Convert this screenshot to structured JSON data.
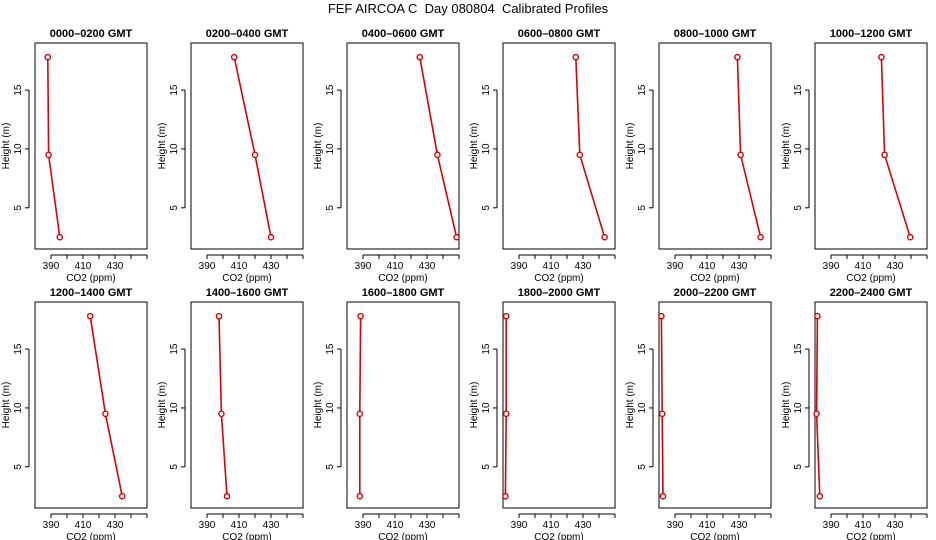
{
  "figure": {
    "title": "FEF AIRCOA C  Day 080804  Calibrated Profiles"
  },
  "colors": {
    "series": "#dd0000",
    "axes": "#000000"
  },
  "chart_data": [
    {
      "type": "line",
      "title": "0000–0200 GMT",
      "xlabel": "CO2 (ppm)",
      "ylabel": "Height (m)",
      "xlim": [
        380,
        450
      ],
      "ylim": [
        1.5,
        19
      ],
      "xticks": [
        390,
        410,
        430
      ],
      "yticks": [
        5,
        10,
        15
      ],
      "series": [
        {
          "x": [
            395.5,
            388.5,
            388.0
          ],
          "y": [
            2.5,
            9.5,
            17.8
          ]
        }
      ]
    },
    {
      "type": "line",
      "title": "0200–0400 GMT",
      "xlabel": "CO2 (ppm)",
      "ylabel": "Height (m)",
      "xlim": [
        380,
        450
      ],
      "ylim": [
        1.5,
        19
      ],
      "xticks": [
        390,
        410,
        430
      ],
      "yticks": [
        5,
        10,
        15
      ],
      "series": [
        {
          "x": [
            430.0,
            420.0,
            407.0
          ],
          "y": [
            2.5,
            9.5,
            17.8
          ]
        }
      ]
    },
    {
      "type": "line",
      "title": "0400–0600 GMT",
      "xlabel": "CO2 (ppm)",
      "ylabel": "Height (m)",
      "xlim": [
        380,
        450
      ],
      "ylim": [
        1.5,
        19
      ],
      "xticks": [
        390,
        410,
        430
      ],
      "yticks": [
        5,
        10,
        15
      ],
      "series": [
        {
          "x": [
            448.5,
            436.5,
            425.5
          ],
          "y": [
            2.5,
            9.5,
            17.8
          ]
        }
      ]
    },
    {
      "type": "line",
      "title": "0600–0800 GMT",
      "xlabel": "CO2 (ppm)",
      "ylabel": "Height (m)",
      "xlim": [
        380,
        450
      ],
      "ylim": [
        1.5,
        19
      ],
      "xticks": [
        390,
        410,
        430
      ],
      "yticks": [
        5,
        10,
        15
      ],
      "series": [
        {
          "x": [
            443.5,
            428.0,
            425.5
          ],
          "y": [
            2.5,
            9.5,
            17.8
          ]
        }
      ]
    },
    {
      "type": "line",
      "title": "0800–1000 GMT",
      "xlabel": "CO2 (ppm)",
      "ylabel": "Height (m)",
      "xlim": [
        380,
        450
      ],
      "ylim": [
        1.5,
        19
      ],
      "xticks": [
        390,
        410,
        430
      ],
      "yticks": [
        5,
        10,
        15
      ],
      "series": [
        {
          "x": [
            443.5,
            431.0,
            429.0
          ],
          "y": [
            2.5,
            9.5,
            17.8
          ]
        }
      ]
    },
    {
      "type": "line",
      "title": "1000–1200 GMT",
      "xlabel": "CO2 (ppm)",
      "ylabel": "Height (m)",
      "xlim": [
        380,
        450
      ],
      "ylim": [
        1.5,
        19
      ],
      "xticks": [
        390,
        410,
        430
      ],
      "yticks": [
        5,
        10,
        15
      ],
      "series": [
        {
          "x": [
            439.5,
            423.5,
            421.5
          ],
          "y": [
            2.5,
            9.5,
            17.8
          ]
        }
      ]
    },
    {
      "type": "line",
      "title": "1200–1400 GMT",
      "xlabel": "CO2 (ppm)",
      "ylabel": "Height (m)",
      "xlim": [
        380,
        450
      ],
      "ylim": [
        1.5,
        19
      ],
      "xticks": [
        390,
        410,
        430
      ],
      "yticks": [
        5,
        10,
        15
      ],
      "series": [
        {
          "x": [
            434.5,
            424.0,
            414.5
          ],
          "y": [
            2.5,
            9.5,
            17.8
          ]
        }
      ]
    },
    {
      "type": "line",
      "title": "1400–1600 GMT",
      "xlabel": "CO2 (ppm)",
      "ylabel": "Height (m)",
      "xlim": [
        380,
        450
      ],
      "ylim": [
        1.5,
        19
      ],
      "xticks": [
        390,
        410,
        430
      ],
      "yticks": [
        5,
        10,
        15
      ],
      "series": [
        {
          "x": [
            402.5,
            399.0,
            397.5
          ],
          "y": [
            2.5,
            9.5,
            17.8
          ]
        }
      ]
    },
    {
      "type": "line",
      "title": "1600–1800 GMT",
      "xlabel": "CO2 (ppm)",
      "ylabel": "Height (m)",
      "xlim": [
        380,
        450
      ],
      "ylim": [
        1.5,
        19
      ],
      "xticks": [
        390,
        410,
        430
      ],
      "yticks": [
        5,
        10,
        15
      ],
      "series": [
        {
          "x": [
            388.0,
            388.0,
            388.5
          ],
          "y": [
            2.5,
            9.5,
            17.8
          ]
        }
      ]
    },
    {
      "type": "line",
      "title": "1800–2000 GMT",
      "xlabel": "CO2 (ppm)",
      "ylabel": "Height (m)",
      "xlim": [
        380,
        450
      ],
      "ylim": [
        1.5,
        19
      ],
      "xticks": [
        390,
        410,
        430
      ],
      "yticks": [
        5,
        10,
        15
      ],
      "series": [
        {
          "x": [
            381.5,
            382.0,
            382.0
          ],
          "y": [
            2.5,
            9.5,
            17.8
          ]
        }
      ]
    },
    {
      "type": "line",
      "title": "2000–2200 GMT",
      "xlabel": "CO2 (ppm)",
      "ylabel": "Height (m)",
      "xlim": [
        380,
        450
      ],
      "ylim": [
        1.5,
        19
      ],
      "xticks": [
        390,
        410,
        430
      ],
      "yticks": [
        5,
        10,
        15
      ],
      "series": [
        {
          "x": [
            382.5,
            382.0,
            381.5
          ],
          "y": [
            2.5,
            9.5,
            17.8
          ]
        }
      ]
    },
    {
      "type": "line",
      "title": "2200–2400 GMT",
      "xlabel": "CO2 (ppm)",
      "ylabel": "Height (m)",
      "xlim": [
        380,
        450
      ],
      "ylim": [
        1.5,
        19
      ],
      "xticks": [
        390,
        410,
        430
      ],
      "yticks": [
        5,
        10,
        15
      ],
      "series": [
        {
          "x": [
            383.0,
            381.0,
            381.5
          ],
          "y": [
            2.5,
            9.5,
            17.8
          ]
        }
      ]
    }
  ]
}
